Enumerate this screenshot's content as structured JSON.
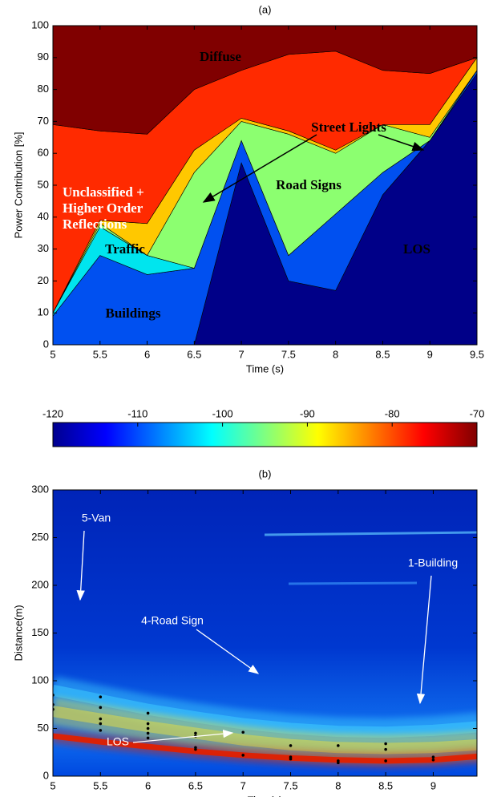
{
  "chart_data": [
    {
      "type": "area",
      "title": "(a)",
      "x_label": "Time (s)",
      "y_label": "Power Contribution [%]",
      "x": [
        5,
        5.5,
        6,
        6.5,
        7,
        7.5,
        8,
        8.5,
        9,
        9.5
      ],
      "series": [
        {
          "name": "LOS",
          "color": "#000088",
          "values": [
            0,
            0,
            0,
            0,
            57,
            20,
            17,
            47,
            64,
            85
          ]
        },
        {
          "name": "Buildings",
          "color": "#0050f0",
          "values": [
            9,
            28,
            22,
            24,
            7,
            8,
            24,
            7,
            0,
            1
          ]
        },
        {
          "name": "Traffic",
          "color": "#00e5ee",
          "values": [
            1,
            9,
            6,
            0,
            0,
            0,
            0,
            0,
            0,
            0
          ]
        },
        {
          "name": "Road Signs",
          "color": "#8cff70",
          "values": [
            0,
            1,
            0,
            30,
            6,
            38,
            19,
            15,
            1,
            0
          ]
        },
        {
          "name": "Street Lights",
          "color": "#ffc800",
          "values": [
            0,
            1,
            10,
            7,
            1,
            1,
            1,
            0,
            4,
            4
          ]
        },
        {
          "name": "Unclassified + Higher Order Reflections",
          "color": "#ff2a00",
          "values": [
            59,
            28,
            28,
            19,
            15,
            24,
            31,
            17,
            16,
            0
          ]
        },
        {
          "name": "Diffuse",
          "color": "#800000",
          "values": [
            31,
            33,
            34,
            20,
            14,
            9,
            8,
            14,
            15,
            10
          ]
        }
      ],
      "xlim": [
        5,
        9.5
      ],
      "xticks": [
        5,
        5.5,
        6,
        6.5,
        7,
        7.5,
        8,
        8.5,
        9,
        9.5
      ],
      "ylim": [
        0,
        100
      ],
      "yticks": [
        0,
        10,
        20,
        30,
        40,
        50,
        60,
        70,
        80,
        90,
        100
      ]
    },
    {
      "type": "colorbar",
      "colormap": "jet",
      "xlim": [
        -120,
        -70
      ],
      "xticks": [
        -120,
        -110,
        -100,
        -90,
        -80,
        -70
      ]
    },
    {
      "type": "heatmap",
      "title": "(b)",
      "x_label": "Time(s)",
      "y_label": "Distance(m)",
      "annotations": [
        "5-Van",
        "4-Road Sign",
        "1-Building",
        "LOS"
      ],
      "x": [
        5,
        5.5,
        6,
        6.5,
        7,
        7.5,
        8,
        8.5,
        9,
        9.5
      ],
      "series": [
        {
          "color": "#40d0ff",
          "values": [
            90,
            80,
            70,
            62,
            55,
            50,
            47,
            46,
            48,
            52
          ]
        },
        {
          "color": "#e8e040",
          "values": [
            68,
            60,
            52,
            45,
            38,
            33,
            30,
            29,
            30,
            33
          ]
        },
        {
          "color": "#e02000",
          "values": [
            42,
            36,
            31,
            26,
            22,
            19,
            17,
            16,
            17,
            21
          ]
        }
      ],
      "points": {
        "color": "#000000",
        "x": [
          5,
          5,
          5,
          5.5,
          5.5,
          5.5,
          5.5,
          5.5,
          6,
          6,
          6,
          6,
          6,
          6.5,
          6.5,
          6.5,
          6.5,
          7,
          7,
          7.5,
          7.5,
          7.5,
          8,
          8,
          8,
          8.5,
          8.5,
          8.5,
          9,
          9,
          9.5,
          9.5
        ],
        "y": [
          85,
          75,
          70,
          83,
          72,
          60,
          55,
          48,
          66,
          55,
          50,
          45,
          40,
          45,
          42,
          30,
          28,
          46,
          22,
          32,
          20,
          18,
          32,
          16,
          14,
          34,
          28,
          16,
          20,
          17,
          25,
          21
        ]
      },
      "xlim": [
        5,
        9.46
      ],
      "xticks": [
        5,
        5.5,
        6,
        6.5,
        7,
        7.5,
        8,
        8.5,
        9
      ],
      "ylim": [
        0,
        300
      ],
      "yticks": [
        0,
        50,
        100,
        150,
        200,
        250,
        300
      ]
    }
  ]
}
